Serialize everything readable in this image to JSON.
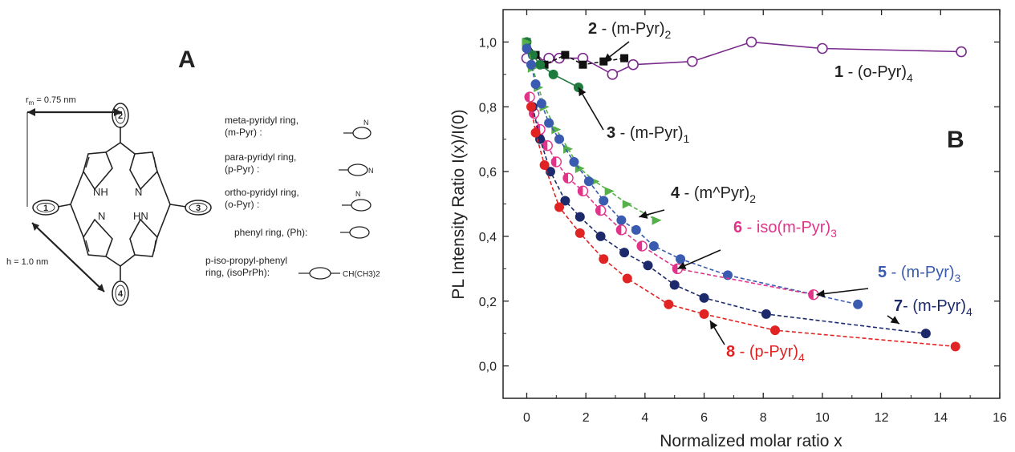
{
  "panel_a": {
    "letter": "A",
    "rm_label": "r",
    "rm_sub": "m",
    "rm_value": " = 0.75 nm",
    "h_label": "h = 1.0 nm",
    "nh_top": "NH",
    "nh_bottom": "HN",
    "n_right": "N",
    "n_left": "N",
    "ring_numbers": [
      "2",
      "1",
      "3",
      "4"
    ],
    "legend": [
      {
        "lines": [
          "meta-pyridyl ring,",
          "(m-Pyr) :"
        ],
        "n_text": "N"
      },
      {
        "lines": [
          "para-pyridyl ring,",
          "(p-Pyr) :"
        ],
        "n_text": "N"
      },
      {
        "lines": [
          "ortho-pyridyl ring,",
          "(o-Pyr) :"
        ],
        "n_text": "N"
      },
      {
        "lines": [
          "phenyl ring, (Ph):"
        ],
        "n_text": ""
      },
      {
        "lines": [
          "p-iso-propyl-phenyl",
          "ring, (isoPrPh):"
        ],
        "n_text": "CH(CH3)2"
      }
    ]
  },
  "chart_data": {
    "type": "line",
    "panel_letter": "B",
    "xlabel": "Normalized molar ratio x",
    "ylabel": "PL Intensity Ratio I(x)/I(0)",
    "xlim": [
      -0.8,
      16
    ],
    "ylim": [
      -0.1,
      1.1
    ],
    "xticks": [
      0,
      2,
      4,
      6,
      8,
      10,
      12,
      14,
      16
    ],
    "yticks": [
      0.0,
      0.2,
      0.4,
      0.6,
      0.8,
      1.0
    ],
    "ytick_labels": [
      "0,0",
      "0,2",
      "0,4",
      "0,6",
      "0,8",
      "1,0"
    ],
    "grid": false,
    "series": [
      {
        "name": "1 - (o-Pyr)4",
        "color": "#7a2a8c",
        "marker": "open-circle",
        "dash": false,
        "x": [
          0,
          0.35,
          0.75,
          1.1,
          1.9,
          2.9,
          3.6,
          5.6,
          7.6,
          10.0,
          14.7
        ],
        "y": [
          0.95,
          0.94,
          0.95,
          0.95,
          0.95,
          0.9,
          0.93,
          0.94,
          1.0,
          0.98,
          0.97
        ]
      },
      {
        "name": "2 - (m-Pyr)2",
        "color": "#111111",
        "marker": "square",
        "dash": true,
        "x": [
          0,
          0.3,
          0.6,
          1.3,
          1.9,
          2.6,
          3.3
        ],
        "y": [
          1.0,
          0.96,
          0.93,
          0.96,
          0.93,
          0.94,
          0.95
        ]
      },
      {
        "name": "3 - (m-Pyr)1",
        "color": "#1f7a3e",
        "marker": "circle",
        "dash": false,
        "x": [
          0,
          0.2,
          0.45,
          0.9,
          1.75
        ],
        "y": [
          1.0,
          0.96,
          0.93,
          0.9,
          0.86
        ]
      },
      {
        "name": "4 - (m^Pyr)2",
        "color": "#55b04a",
        "marker": "triangle",
        "dash": true,
        "x": [
          0,
          0.2,
          0.4,
          0.6,
          1.0,
          1.4,
          1.8,
          2.3,
          2.8,
          3.4,
          4.4
        ],
        "y": [
          1.0,
          0.92,
          0.86,
          0.8,
          0.73,
          0.67,
          0.61,
          0.57,
          0.54,
          0.5,
          0.45
        ]
      },
      {
        "name": "5 - (m-Pyr)3",
        "color": "#3a5bb0",
        "marker": "circle",
        "dash": true,
        "x": [
          0,
          0.15,
          0.3,
          0.5,
          0.75,
          1.1,
          1.6,
          2.1,
          2.6,
          3.2,
          3.7,
          4.3,
          5.2,
          6.8,
          11.2
        ],
        "y": [
          0.98,
          0.93,
          0.87,
          0.81,
          0.75,
          0.7,
          0.63,
          0.57,
          0.51,
          0.45,
          0.42,
          0.37,
          0.33,
          0.28,
          0.19
        ]
      },
      {
        "name": "6 - iso(m-Pyr)3",
        "color": "#e2338a",
        "marker": "half-circle",
        "dash": true,
        "x": [
          0.1,
          0.25,
          0.45,
          0.7,
          1.0,
          1.4,
          1.9,
          2.5,
          3.2,
          3.9,
          5.1,
          9.7
        ],
        "y": [
          0.83,
          0.78,
          0.73,
          0.68,
          0.63,
          0.58,
          0.54,
          0.48,
          0.42,
          0.37,
          0.3,
          0.22
        ]
      },
      {
        "name": "7- (m-Pyr)4",
        "color": "#1c2a6b",
        "marker": "circle",
        "dash": true,
        "x": [
          0.2,
          0.45,
          0.8,
          1.3,
          1.8,
          2.5,
          3.3,
          4.1,
          5.0,
          6.0,
          8.1,
          13.5
        ],
        "y": [
          0.8,
          0.7,
          0.6,
          0.51,
          0.46,
          0.4,
          0.35,
          0.31,
          0.25,
          0.21,
          0.16,
          0.1
        ]
      },
      {
        "name": "8 - (p-Pyr)4",
        "color": "#e02424",
        "marker": "circle",
        "dash": true,
        "x": [
          0.15,
          0.3,
          0.6,
          1.1,
          1.8,
          2.6,
          3.4,
          4.8,
          6.0,
          8.4,
          14.5
        ],
        "y": [
          0.8,
          0.72,
          0.62,
          0.49,
          0.41,
          0.33,
          0.27,
          0.19,
          0.16,
          0.11,
          0.06
        ]
      }
    ],
    "annotations": [
      {
        "num": "2",
        "text": " - (m-Pyr)",
        "sub": "2",
        "color": "#222222",
        "to_x": 2.6,
        "to_y": 0.94
      },
      {
        "num": "1",
        "text": " - (o-Pyr)",
        "sub": "4",
        "color": "#222222"
      },
      {
        "num": "3",
        "text": " - (m-Pyr)",
        "sub": "1",
        "color": "#222222",
        "to_x": 1.75,
        "to_y": 0.86
      },
      {
        "num": "4",
        "text": " - (m^Pyr)",
        "sub": "2",
        "color": "#222222",
        "to_x": 3.8,
        "to_y": 0.46
      },
      {
        "num": "6",
        "text": " - iso(m-Pyr)",
        "sub": "3",
        "color": "#e2338a",
        "to_x": 5.1,
        "to_y": 0.3
      },
      {
        "num": "5",
        "text": " - (m-Pyr)",
        "sub": "3",
        "color": "#3a5bb0",
        "to_x": 9.8,
        "to_y": 0.22
      },
      {
        "num": "7",
        "text": "- (m-Pyr)",
        "sub": "4",
        "color": "#1c2a6b",
        "to_x": 12.6,
        "to_y": 0.13
      },
      {
        "num": "8",
        "text": " - (p-Pyr)",
        "sub": "4",
        "color": "#e02424",
        "to_x": 6.2,
        "to_y": 0.14
      }
    ]
  }
}
